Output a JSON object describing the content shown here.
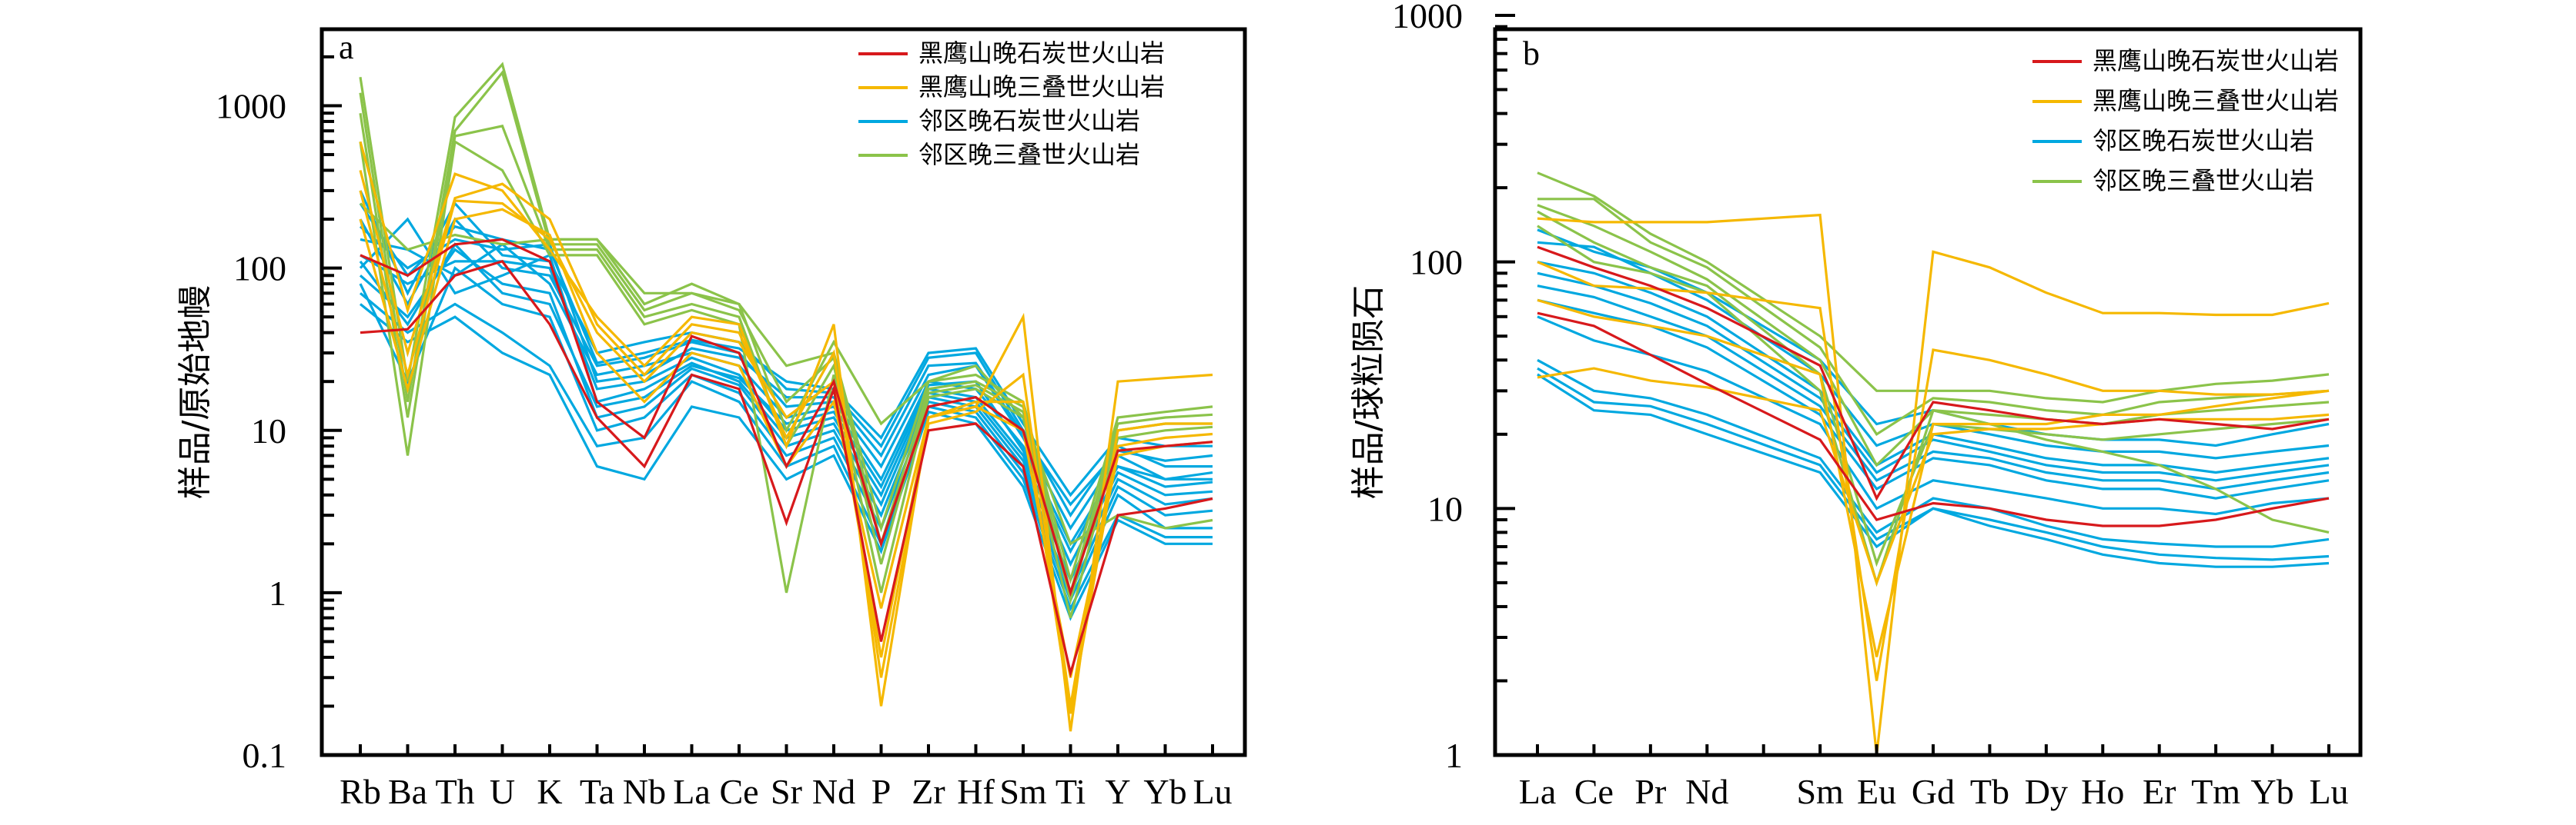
{
  "colors": {
    "heiyingshan_carboniferous": "#d7191c",
    "heiyingshan_triassic": "#f5b800",
    "neighbor_carboniferous": "#00a8e0",
    "neighbor_triassic": "#8bc34a"
  },
  "chart_data": [
    {
      "id": "a",
      "type": "line",
      "panel_label": "a",
      "title": "",
      "xlabel": "",
      "ylabel": "样品/原始地幔",
      "yscale": "log",
      "ylim": [
        0.1,
        3000
      ],
      "yticks": [
        "0.1",
        "1",
        "10",
        "100",
        "1000"
      ],
      "ytick_values": [
        0.1,
        1,
        10,
        100,
        1000
      ],
      "categories": [
        "Rb",
        "Ba",
        "Th",
        "U",
        "K",
        "Ta",
        "Nb",
        "La",
        "Ce",
        "Sr",
        "Nd",
        "P",
        "Zr",
        "Hf",
        "Sm",
        "Ti",
        "Y",
        "Yb",
        "Lu"
      ],
      "legend_position": "top-right",
      "legend": [
        {
          "label": "黑鹰山晚石炭世火山岩",
          "color_key": "heiyingshan_carboniferous"
        },
        {
          "label": "黑鹰山晚三叠世火山岩",
          "color_key": "heiyingshan_triassic"
        },
        {
          "label": "邻区晚石炭世火山岩",
          "color_key": "neighbor_carboniferous"
        },
        {
          "label": "邻区晚三叠世火山岩",
          "color_key": "neighbor_triassic"
        }
      ],
      "series": [
        {
          "group": "neighbor_carboniferous",
          "values": [
            300,
            70,
            250,
            120,
            110,
            30,
            35,
            40,
            35,
            18,
            17,
            8,
            28,
            30,
            10,
            3,
            8,
            6,
            6
          ]
        },
        {
          "group": "neighbor_carboniferous",
          "values": [
            200,
            60,
            200,
            100,
            90,
            25,
            28,
            35,
            30,
            14,
            15,
            6,
            22,
            25,
            9,
            2.5,
            7,
            5,
            5
          ]
        },
        {
          "group": "neighbor_carboniferous",
          "values": [
            150,
            130,
            90,
            140,
            80,
            22,
            25,
            30,
            25,
            12,
            14,
            5,
            20,
            18,
            8,
            2,
            6,
            4.5,
            4.8
          ]
        },
        {
          "group": "neighbor_carboniferous",
          "values": [
            120,
            80,
            110,
            110,
            100,
            18,
            20,
            28,
            22,
            10,
            12,
            4,
            18,
            16,
            7,
            1.5,
            5.5,
            4,
            4.2
          ]
        },
        {
          "group": "neighbor_carboniferous",
          "values": [
            100,
            200,
            70,
            90,
            120,
            15,
            18,
            26,
            20,
            9,
            11,
            3.5,
            17,
            15,
            6.5,
            1.2,
            5,
            3.5,
            3.8
          ]
        },
        {
          "group": "neighbor_carboniferous",
          "values": [
            90,
            50,
            130,
            80,
            70,
            12,
            14,
            24,
            19,
            8,
            10,
            3,
            16,
            14,
            6,
            1,
            4.5,
            3,
            3.2
          ]
        },
        {
          "group": "neighbor_carboniferous",
          "values": [
            80,
            20,
            100,
            60,
            50,
            10,
            12,
            22,
            17,
            7,
            9,
            2.5,
            15,
            13,
            5.5,
            0.9,
            4,
            2.5,
            2.5
          ]
        },
        {
          "group": "neighbor_carboniferous",
          "values": [
            70,
            40,
            60,
            40,
            25,
            8,
            9,
            20,
            15,
            6,
            8,
            2,
            14,
            12,
            5,
            0.8,
            3,
            2.2,
            2.2
          ]
        },
        {
          "group": "neighbor_carboniferous",
          "values": [
            60,
            35,
            50,
            30,
            22,
            6,
            5,
            14,
            12,
            5,
            7,
            1.8,
            13,
            11,
            4.5,
            0.7,
            2.8,
            2,
            2
          ]
        },
        {
          "group": "neighbor_carboniferous",
          "values": [
            180,
            100,
            150,
            130,
            140,
            20,
            22,
            32,
            28,
            16,
            16,
            7,
            25,
            26,
            9.5,
            3.5,
            7.5,
            6.5,
            7
          ]
        },
        {
          "group": "neighbor_carboniferous",
          "values": [
            250,
            90,
            180,
            150,
            130,
            26,
            30,
            36,
            32,
            20,
            18,
            9,
            30,
            32,
            11,
            4,
            9,
            8,
            8
          ]
        },
        {
          "group": "neighbor_carboniferous",
          "values": [
            110,
            45,
            140,
            70,
            60,
            14,
            16,
            25,
            21,
            11,
            13,
            4.5,
            19,
            20,
            7.5,
            1.8,
            6,
            5,
            5.5
          ]
        },
        {
          "group": "heiyingshan_carboniferous",
          "values": [
            120,
            90,
            140,
            150,
            110,
            15,
            9,
            38,
            30,
            6,
            20,
            2,
            14,
            16,
            10,
            1,
            7.5,
            8,
            8.5
          ]
        },
        {
          "group": "heiyingshan_carboniferous",
          "values": [
            40,
            42,
            90,
            110,
            45,
            12,
            6,
            22,
            18,
            2.7,
            18,
            0.5,
            10,
            11,
            6,
            0.32,
            3,
            3.3,
            3.8
          ]
        },
        {
          "group": "heiyingshan_triassic",
          "values": [
            600,
            55,
            380,
            300,
            130,
            50,
            25,
            50,
            45,
            8,
            45,
            0.2,
            12,
            14,
            50,
            0.14,
            20,
            21,
            22
          ]
        },
        {
          "group": "heiyingshan_triassic",
          "values": [
            400,
            30,
            270,
            330,
            200,
            45,
            22,
            45,
            40,
            9,
            30,
            0.3,
            11,
            13,
            22,
            0.2,
            10,
            11,
            11
          ]
        },
        {
          "group": "heiyingshan_triassic",
          "values": [
            300,
            22,
            260,
            250,
            150,
            40,
            20,
            40,
            35,
            12,
            20,
            0.4,
            12,
            15,
            15,
            0.18,
            8,
            9,
            9.5
          ]
        },
        {
          "group": "heiyingshan_triassic",
          "values": [
            200,
            18,
            200,
            230,
            160,
            30,
            15,
            30,
            25,
            6,
            15,
            0.8,
            12,
            14,
            10,
            0.3,
            7,
            8,
            8.5
          ]
        },
        {
          "group": "neighbor_triassic",
          "values": [
            1500,
            20,
            850,
            1800,
            150,
            150,
            60,
            80,
            60,
            25,
            30,
            2.5,
            20,
            22,
            15,
            1.2,
            12,
            13,
            14
          ]
        },
        {
          "group": "neighbor_triassic",
          "values": [
            1200,
            15,
            700,
            1600,
            140,
            140,
            55,
            70,
            55,
            15,
            28,
            2,
            18,
            20,
            14,
            1,
            11,
            12,
            12.5
          ]
        },
        {
          "group": "neighbor_triassic",
          "values": [
            900,
            12,
            650,
            750,
            130,
            130,
            50,
            60,
            50,
            8,
            25,
            1.5,
            17,
            19,
            13,
            0.9,
            10,
            11,
            11
          ]
        },
        {
          "group": "neighbor_triassic",
          "values": [
            600,
            7,
            600,
            400,
            120,
            120,
            45,
            55,
            45,
            1,
            22,
            1,
            16,
            18,
            12,
            0.7,
            9,
            10,
            10.5
          ]
        },
        {
          "group": "neighbor_triassic",
          "values": [
            250,
            130,
            160,
            140,
            150,
            150,
            70,
            70,
            60,
            10,
            35,
            11,
            20,
            25,
            12,
            2,
            3,
            2.5,
            2.8
          ]
        }
      ]
    },
    {
      "id": "b",
      "type": "line",
      "panel_label": "b",
      "title": "",
      "xlabel": "",
      "ylabel": "样品/球粒陨石",
      "yscale": "log",
      "ylim": [
        1,
        1000
      ],
      "yticks": [
        "1",
        "10",
        "100",
        "1000"
      ],
      "ytick_values": [
        1,
        10,
        100,
        1000
      ],
      "categories": [
        "La",
        "Ce",
        "Pr",
        "Nd",
        "",
        "Sm",
        "Eu",
        "Gd",
        "Tb",
        "Dy",
        "Ho",
        "Er",
        "Tm",
        "Yb",
        "Lu"
      ],
      "legend_position": "top-right",
      "legend": [
        {
          "label": "黑鹰山晚石炭世火山岩",
          "color_key": "heiyingshan_carboniferous"
        },
        {
          "label": "黑鹰山晚三叠世火山岩",
          "color_key": "heiyingshan_triassic"
        },
        {
          "label": "邻区晚石炭世火山岩",
          "color_key": "neighbor_carboniferous"
        },
        {
          "label": "邻区晚三叠世火山岩",
          "color_key": "neighbor_triassic"
        }
      ],
      "series": [
        {
          "group": "neighbor_carboniferous",
          "values": [
            135,
            110,
            95,
            75,
            null,
            40,
            22,
            25,
            22,
            20,
            19,
            19,
            18,
            20,
            22
          ]
        },
        {
          "group": "neighbor_carboniferous",
          "values": [
            120,
            115,
            90,
            70,
            null,
            35,
            18,
            22,
            20,
            18,
            17,
            17,
            16,
            17,
            18
          ]
        },
        {
          "group": "neighbor_carboniferous",
          "values": [
            100,
            90,
            75,
            60,
            null,
            30,
            15,
            20,
            18,
            16,
            15,
            15,
            14,
            15,
            16
          ]
        },
        {
          "group": "neighbor_carboniferous",
          "values": [
            90,
            80,
            68,
            55,
            null,
            28,
            14,
            19,
            17,
            15,
            14,
            14,
            13,
            14,
            15
          ]
        },
        {
          "group": "neighbor_carboniferous",
          "values": [
            80,
            72,
            60,
            50,
            null,
            26,
            13,
            17,
            16,
            14,
            13,
            13,
            12,
            13,
            14
          ]
        },
        {
          "group": "neighbor_carboniferous",
          "values": [
            70,
            62,
            55,
            45,
            null,
            24,
            12,
            16,
            15,
            13,
            12,
            12,
            11,
            12,
            13
          ]
        },
        {
          "group": "neighbor_carboniferous",
          "values": [
            60,
            48,
            42,
            36,
            null,
            22,
            10,
            13,
            12,
            11,
            10,
            10,
            9.5,
            10.5,
            11
          ]
        },
        {
          "group": "neighbor_carboniferous",
          "values": [
            40,
            30,
            28,
            24,
            null,
            16,
            8,
            11,
            10,
            8.5,
            7.5,
            7.2,
            7,
            7,
            7.5
          ]
        },
        {
          "group": "neighbor_carboniferous",
          "values": [
            37,
            27,
            26,
            22,
            null,
            15,
            7.5,
            10,
            9,
            8,
            7,
            6.5,
            6.3,
            6.2,
            6.4
          ]
        },
        {
          "group": "neighbor_carboniferous",
          "values": [
            35,
            25,
            24,
            20,
            null,
            14,
            7,
            10,
            8.5,
            7.5,
            6.5,
            6,
            5.8,
            5.8,
            6
          ]
        },
        {
          "group": "heiyingshan_carboniferous",
          "values": [
            115,
            95,
            80,
            65,
            null,
            38,
            11,
            27,
            25,
            23,
            22,
            23,
            22,
            21,
            23
          ]
        },
        {
          "group": "heiyingshan_carboniferous",
          "values": [
            62,
            55,
            42,
            32,
            null,
            19,
            9,
            10.5,
            10,
            9,
            8.5,
            8.5,
            9,
            10,
            11
          ]
        },
        {
          "group": "heiyingshan_triassic",
          "values": [
            150,
            145,
            145,
            145,
            null,
            155,
            1,
            110,
            95,
            75,
            62,
            62,
            61,
            61,
            68
          ]
        },
        {
          "group": "heiyingshan_triassic",
          "values": [
            100,
            80,
            78,
            75,
            null,
            65,
            2,
            44,
            40,
            35,
            30,
            30,
            29,
            29,
            30
          ]
        },
        {
          "group": "heiyingshan_triassic",
          "values": [
            70,
            60,
            55,
            50,
            null,
            35,
            2.5,
            22,
            22,
            22,
            24,
            24,
            26,
            28,
            30
          ]
        },
        {
          "group": "heiyingshan_triassic",
          "values": [
            34,
            37,
            33,
            31,
            null,
            25,
            5,
            20,
            21,
            21,
            22,
            23,
            23,
            23,
            24
          ]
        },
        {
          "group": "neighbor_triassic",
          "values": [
            230,
            185,
            130,
            100,
            null,
            50,
            30,
            30,
            30,
            28,
            27,
            30,
            32,
            33,
            35
          ]
        },
        {
          "group": "neighbor_triassic",
          "values": [
            180,
            180,
            120,
            95,
            null,
            45,
            20,
            28,
            27,
            25,
            24,
            27,
            28,
            29,
            30
          ]
        },
        {
          "group": "neighbor_triassic",
          "values": [
            170,
            140,
            110,
            85,
            null,
            40,
            15,
            25,
            24,
            23,
            22,
            24,
            25,
            26,
            27
          ]
        },
        {
          "group": "neighbor_triassic",
          "values": [
            160,
            120,
            95,
            80,
            null,
            35,
            6,
            22,
            21,
            20,
            19,
            20,
            21,
            22,
            23
          ]
        },
        {
          "group": "neighbor_triassic",
          "values": [
            140,
            100,
            90,
            75,
            null,
            30,
            5,
            25,
            22,
            19,
            17,
            15,
            12,
            9,
            8
          ]
        }
      ]
    }
  ]
}
